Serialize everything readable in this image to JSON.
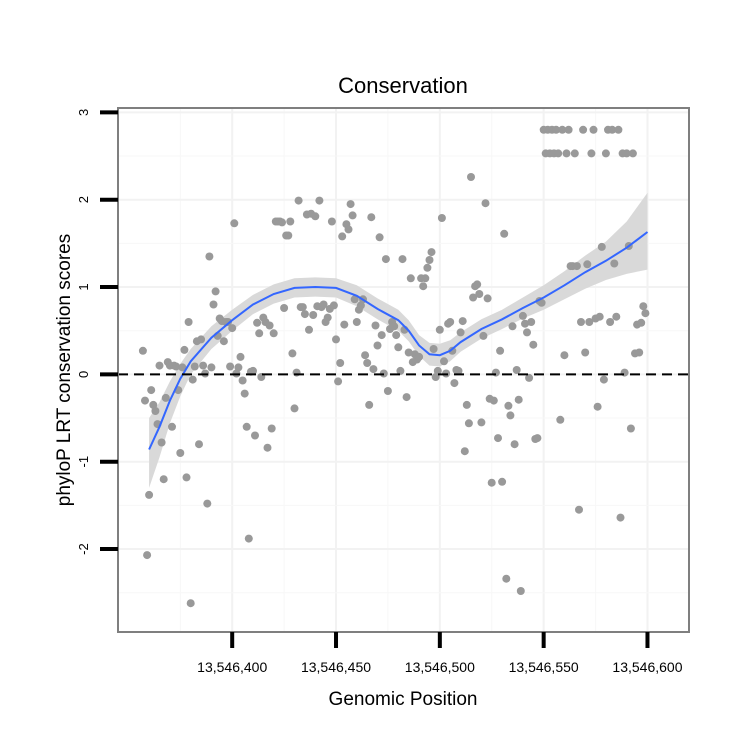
{
  "chart_data": {
    "type": "scatter",
    "title": "Conservation",
    "xlabel": "Genomic Position",
    "ylabel": "phyloP LRT conservation scores",
    "xlim": [
      13546345,
      13546620
    ],
    "ylim": [
      -2.95,
      3.05
    ],
    "x_ticks": [
      13546400,
      13546450,
      13546500,
      13546550,
      13546600
    ],
    "x_tick_labels": [
      "13,546,400",
      "13,546,450",
      "13,546,500",
      "13,546,550",
      "13,546,600"
    ],
    "y_ticks": [
      -2,
      -1,
      0,
      1,
      2,
      3
    ],
    "y_tick_labels": [
      "-2",
      "-1",
      "0",
      "1",
      "2",
      "3"
    ],
    "reference_line": {
      "y": 0,
      "style": "dashed"
    },
    "colors": {
      "points": "#999999",
      "smooth": "#3366ff",
      "band": "#d9d9d9",
      "frame": "#7f7f7f"
    },
    "points": [
      [
        13546357,
        0.27
      ],
      [
        13546358,
        -0.3
      ],
      [
        13546359,
        -2.07
      ],
      [
        13546360,
        -1.38
      ],
      [
        13546361,
        -0.18
      ],
      [
        13546362,
        -0.35
      ],
      [
        13546363,
        -0.42
      ],
      [
        13546364,
        -0.57
      ],
      [
        13546365,
        0.1
      ],
      [
        13546366,
        -0.78
      ],
      [
        13546367,
        -1.2
      ],
      [
        13546368,
        -0.27
      ],
      [
        13546369,
        0.14
      ],
      [
        13546370,
        0.1
      ],
      [
        13546371,
        -0.6
      ],
      [
        13546372,
        0.1
      ],
      [
        13546373,
        0.09
      ],
      [
        13546374,
        -0.18
      ],
      [
        13546375,
        -0.9
      ],
      [
        13546376,
        0.08
      ],
      [
        13546377,
        0.28
      ],
      [
        13546378,
        -1.18
      ],
      [
        13546379,
        0.6
      ],
      [
        13546380,
        -2.62
      ],
      [
        13546381,
        -0.06
      ],
      [
        13546382,
        0.09
      ],
      [
        13546383,
        0.38
      ],
      [
        13546384,
        -0.8
      ],
      [
        13546385,
        0.4
      ],
      [
        13546386,
        0.1
      ],
      [
        13546387,
        0.01
      ],
      [
        13546388,
        -1.48
      ],
      [
        13546389,
        1.35
      ],
      [
        13546390,
        0.08
      ],
      [
        13546391,
        0.8
      ],
      [
        13546392,
        0.95
      ],
      [
        13546393,
        0.44
      ],
      [
        13546394,
        0.64
      ],
      [
        13546395,
        0.61
      ],
      [
        13546396,
        0.38
      ],
      [
        13546397,
        0.6
      ],
      [
        13546398,
        0.6
      ],
      [
        13546399,
        0.09
      ],
      [
        13546400,
        0.53
      ],
      [
        13546401,
        1.73
      ],
      [
        13546402,
        0.01
      ],
      [
        13546403,
        0.08
      ],
      [
        13546404,
        0.2
      ],
      [
        13546405,
        -0.07
      ],
      [
        13546406,
        -0.22
      ],
      [
        13546407,
        -0.6
      ],
      [
        13546408,
        -1.88
      ],
      [
        13546409,
        0.03
      ],
      [
        13546410,
        0.04
      ],
      [
        13546411,
        -0.7
      ],
      [
        13546412,
        0.59
      ],
      [
        13546413,
        0.47
      ],
      [
        13546414,
        -0.03
      ],
      [
        13546415,
        0.65
      ],
      [
        13546416,
        0.6
      ],
      [
        13546417,
        -0.84
      ],
      [
        13546418,
        0.56
      ],
      [
        13546419,
        -0.62
      ],
      [
        13546420,
        0.47
      ],
      [
        13546421,
        1.75
      ],
      [
        13546422,
        1.75
      ],
      [
        13546423,
        1.75
      ],
      [
        13546424,
        1.74
      ],
      [
        13546425,
        0.76
      ],
      [
        13546426,
        1.59
      ],
      [
        13546427,
        1.59
      ],
      [
        13546428,
        1.75
      ],
      [
        13546429,
        0.24
      ],
      [
        13546430,
        -0.39
      ],
      [
        13546431,
        0.02
      ],
      [
        13546432,
        1.99
      ],
      [
        13546433,
        0.77
      ],
      [
        13546434,
        0.77
      ],
      [
        13546435,
        0.69
      ],
      [
        13546436,
        1.83
      ],
      [
        13546437,
        0.51
      ],
      [
        13546438,
        1.84
      ],
      [
        13546439,
        0.68
      ],
      [
        13546440,
        1.81
      ],
      [
        13546441,
        0.78
      ],
      [
        13546442,
        1.99
      ],
      [
        13546443,
        0.77
      ],
      [
        13546444,
        0.8
      ],
      [
        13546445,
        0.6
      ],
      [
        13546446,
        0.65
      ],
      [
        13546447,
        0.75
      ],
      [
        13546448,
        1.75
      ],
      [
        13546449,
        0.79
      ],
      [
        13546450,
        0.4
      ],
      [
        13546451,
        -0.08
      ],
      [
        13546452,
        0.13
      ],
      [
        13546453,
        1.58
      ],
      [
        13546454,
        0.57
      ],
      [
        13546455,
        1.72
      ],
      [
        13546456,
        1.66
      ],
      [
        13546457,
        1.95
      ],
      [
        13546458,
        1.82
      ],
      [
        13546459,
        0.86
      ],
      [
        13546460,
        0.6
      ],
      [
        13546461,
        0.74
      ],
      [
        13546462,
        0.79
      ],
      [
        13546463,
        0.86
      ],
      [
        13546464,
        0.22
      ],
      [
        13546465,
        0.13
      ],
      [
        13546466,
        -0.35
      ],
      [
        13546467,
        1.8
      ],
      [
        13546468,
        0.06
      ],
      [
        13546469,
        0.56
      ],
      [
        13546470,
        0.33
      ],
      [
        13546471,
        1.57
      ],
      [
        13546472,
        0.45
      ],
      [
        13546473,
        0.01
      ],
      [
        13546474,
        1.32
      ],
      [
        13546475,
        -0.19
      ],
      [
        13546476,
        0.52
      ],
      [
        13546477,
        0.6
      ],
      [
        13546478,
        0.55
      ],
      [
        13546479,
        0.45
      ],
      [
        13546480,
        0.31
      ],
      [
        13546481,
        0.04
      ],
      [
        13546482,
        1.32
      ],
      [
        13546483,
        0.51
      ],
      [
        13546484,
        -0.26
      ],
      [
        13546485,
        0.25
      ],
      [
        13546486,
        1.1
      ],
      [
        13546487,
        0.14
      ],
      [
        13546488,
        0.23
      ],
      [
        13546489,
        0.17
      ],
      [
        13546490,
        0.2
      ],
      [
        13546491,
        1.1
      ],
      [
        13546492,
        1.01
      ],
      [
        13546493,
        1.1
      ],
      [
        13546494,
        1.22
      ],
      [
        13546495,
        1.31
      ],
      [
        13546496,
        1.4
      ],
      [
        13546497,
        0.29
      ],
      [
        13546498,
        -0.03
      ],
      [
        13546499,
        0.04
      ],
      [
        13546500,
        0.51
      ],
      [
        13546501,
        1.79
      ],
      [
        13546502,
        0.15
      ],
      [
        13546503,
        0.01
      ],
      [
        13546504,
        0.58
      ],
      [
        13546505,
        0.6
      ],
      [
        13546506,
        0.27
      ],
      [
        13546507,
        -0.1
      ],
      [
        13546508,
        0.05
      ],
      [
        13546509,
        0.04
      ],
      [
        13546510,
        0.48
      ],
      [
        13546511,
        0.61
      ],
      [
        13546512,
        -0.88
      ],
      [
        13546513,
        -0.35
      ],
      [
        13546514,
        -0.56
      ],
      [
        13546515,
        2.26
      ],
      [
        13546516,
        0.88
      ],
      [
        13546517,
        1.01
      ],
      [
        13546518,
        1.03
      ],
      [
        13546519,
        0.92
      ],
      [
        13546520,
        -0.55
      ],
      [
        13546521,
        0.44
      ],
      [
        13546522,
        1.96
      ],
      [
        13546523,
        0.87
      ],
      [
        13546524,
        -0.28
      ],
      [
        13546525,
        -1.24
      ],
      [
        13546526,
        -0.3
      ],
      [
        13546527,
        0.02
      ],
      [
        13546528,
        -0.73
      ],
      [
        13546529,
        0.27
      ],
      [
        13546530,
        -1.23
      ],
      [
        13546531,
        1.61
      ],
      [
        13546532,
        -2.34
      ],
      [
        13546533,
        -0.36
      ],
      [
        13546534,
        -0.47
      ],
      [
        13546535,
        0.55
      ],
      [
        13546536,
        -0.8
      ],
      [
        13546537,
        0.05
      ],
      [
        13546538,
        -0.29
      ],
      [
        13546539,
        -2.48
      ],
      [
        13546540,
        0.67
      ],
      [
        13546541,
        0.58
      ],
      [
        13546542,
        0.48
      ],
      [
        13546543,
        -0.04
      ],
      [
        13546544,
        0.6
      ],
      [
        13546545,
        0.34
      ],
      [
        13546546,
        -0.74
      ],
      [
        13546547,
        -0.73
      ],
      [
        13546548,
        0.84
      ],
      [
        13546549,
        0.82
      ],
      [
        13546550,
        2.8
      ],
      [
        13546551,
        2.53
      ],
      [
        13546552,
        2.8
      ],
      [
        13546553,
        2.53
      ],
      [
        13546554,
        2.8
      ],
      [
        13546555,
        2.53
      ],
      [
        13546556,
        2.8
      ],
      [
        13546557,
        2.53
      ],
      [
        13546558,
        -0.52
      ],
      [
        13546559,
        2.8
      ],
      [
        13546560,
        0.22
      ],
      [
        13546561,
        2.53
      ],
      [
        13546562,
        2.8
      ],
      [
        13546563,
        1.24
      ],
      [
        13546564,
        1.24
      ],
      [
        13546565,
        2.53
      ],
      [
        13546566,
        1.24
      ],
      [
        13546567,
        -1.55
      ],
      [
        13546568,
        0.6
      ],
      [
        13546569,
        2.8
      ],
      [
        13546570,
        0.25
      ],
      [
        13546571,
        1.26
      ],
      [
        13546572,
        0.6
      ],
      [
        13546573,
        2.53
      ],
      [
        13546574,
        2.8
      ],
      [
        13546575,
        0.64
      ],
      [
        13546576,
        -0.37
      ],
      [
        13546577,
        0.66
      ],
      [
        13546578,
        1.46
      ],
      [
        13546579,
        -0.06
      ],
      [
        13546580,
        2.53
      ],
      [
        13546581,
        2.8
      ],
      [
        13546582,
        0.6
      ],
      [
        13546583,
        2.8
      ],
      [
        13546584,
        1.27
      ],
      [
        13546585,
        0.66
      ],
      [
        13546586,
        2.8
      ],
      [
        13546587,
        -1.64
      ],
      [
        13546588,
        2.53
      ],
      [
        13546589,
        0.02
      ],
      [
        13546590,
        2.53
      ],
      [
        13546591,
        1.47
      ],
      [
        13546592,
        -0.62
      ],
      [
        13546593,
        2.53
      ],
      [
        13546594,
        0.24
      ],
      [
        13546595,
        0.57
      ],
      [
        13546596,
        0.25
      ],
      [
        13546597,
        0.59
      ],
      [
        13546598,
        0.78
      ],
      [
        13546599,
        0.7
      ]
    ],
    "smooth_line": [
      [
        13546360,
        -0.86
      ],
      [
        13546365,
        -0.6
      ],
      [
        13546370,
        -0.3
      ],
      [
        13546375,
        -0.05
      ],
      [
        13546380,
        0.15
      ],
      [
        13546390,
        0.42
      ],
      [
        13546400,
        0.62
      ],
      [
        13546410,
        0.8
      ],
      [
        13546420,
        0.92
      ],
      [
        13546430,
        0.99
      ],
      [
        13546440,
        1.0
      ],
      [
        13546450,
        0.99
      ],
      [
        13546460,
        0.9
      ],
      [
        13546470,
        0.75
      ],
      [
        13546480,
        0.62
      ],
      [
        13546485,
        0.5
      ],
      [
        13546490,
        0.33
      ],
      [
        13546495,
        0.23
      ],
      [
        13546500,
        0.22
      ],
      [
        13546505,
        0.27
      ],
      [
        13546510,
        0.37
      ],
      [
        13546520,
        0.52
      ],
      [
        13546530,
        0.63
      ],
      [
        13546540,
        0.76
      ],
      [
        13546550,
        0.88
      ],
      [
        13546560,
        1.02
      ],
      [
        13546570,
        1.17
      ],
      [
        13546580,
        1.3
      ],
      [
        13546590,
        1.45
      ],
      [
        13546600,
        1.63
      ]
    ],
    "band_upper": [
      [
        13546360,
        -0.5
      ],
      [
        13546365,
        -0.32
      ],
      [
        13546370,
        -0.08
      ],
      [
        13546375,
        0.12
      ],
      [
        13546380,
        0.29
      ],
      [
        13546390,
        0.55
      ],
      [
        13546400,
        0.74
      ],
      [
        13546410,
        0.91
      ],
      [
        13546420,
        1.03
      ],
      [
        13546430,
        1.1
      ],
      [
        13546440,
        1.11
      ],
      [
        13546450,
        1.1
      ],
      [
        13546460,
        1.02
      ],
      [
        13546470,
        0.87
      ],
      [
        13546480,
        0.74
      ],
      [
        13546485,
        0.62
      ],
      [
        13546490,
        0.45
      ],
      [
        13546495,
        0.36
      ],
      [
        13546500,
        0.35
      ],
      [
        13546505,
        0.39
      ],
      [
        13546510,
        0.48
      ],
      [
        13546520,
        0.63
      ],
      [
        13546530,
        0.74
      ],
      [
        13546540,
        0.88
      ],
      [
        13546550,
        1.02
      ],
      [
        13546560,
        1.18
      ],
      [
        13546570,
        1.36
      ],
      [
        13546580,
        1.52
      ],
      [
        13546590,
        1.75
      ],
      [
        13546600,
        2.08
      ]
    ],
    "band_lower": [
      [
        13546360,
        -1.3
      ],
      [
        13546365,
        -0.95
      ],
      [
        13546370,
        -0.56
      ],
      [
        13546375,
        -0.25
      ],
      [
        13546380,
        0.0
      ],
      [
        13546390,
        0.29
      ],
      [
        13546400,
        0.5
      ],
      [
        13546410,
        0.69
      ],
      [
        13546420,
        0.81
      ],
      [
        13546430,
        0.88
      ],
      [
        13546440,
        0.89
      ],
      [
        13546450,
        0.88
      ],
      [
        13546460,
        0.78
      ],
      [
        13546470,
        0.63
      ],
      [
        13546480,
        0.5
      ],
      [
        13546485,
        0.38
      ],
      [
        13546490,
        0.21
      ],
      [
        13546495,
        0.1
      ],
      [
        13546500,
        0.09
      ],
      [
        13546505,
        0.15
      ],
      [
        13546510,
        0.26
      ],
      [
        13546520,
        0.41
      ],
      [
        13546530,
        0.52
      ],
      [
        13546540,
        0.64
      ],
      [
        13546550,
        0.74
      ],
      [
        13546560,
        0.86
      ],
      [
        13546570,
        0.98
      ],
      [
        13546580,
        1.08
      ],
      [
        13546590,
        1.15
      ],
      [
        13546600,
        1.2
      ]
    ]
  }
}
